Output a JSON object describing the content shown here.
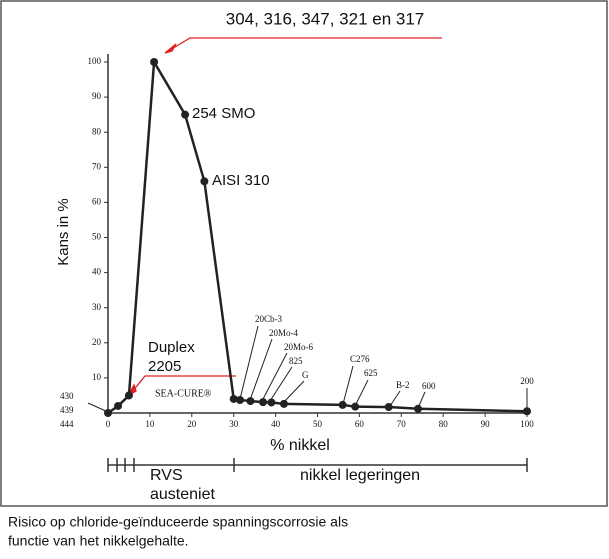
{
  "chart_data": {
    "type": "line",
    "x_label": "% nikkel",
    "y_label": "Kans in %",
    "xlim": [
      0,
      100
    ],
    "xticks": [
      0,
      10,
      20,
      30,
      40,
      50,
      60,
      70,
      80,
      90,
      100
    ],
    "ylim": [
      0,
      100
    ],
    "yticks": [
      10,
      20,
      30,
      40,
      50,
      60,
      70,
      80,
      90,
      100
    ],
    "x": [
      0,
      2.4,
      5,
      11,
      18.4,
      23,
      30,
      31.5,
      34,
      37,
      39,
      42,
      56,
      59,
      67,
      74,
      100
    ],
    "series": [
      {
        "color": "#222222",
        "values": [
          0,
          2,
          5,
          100,
          85,
          66,
          4,
          3.7,
          3.4,
          3.1,
          3,
          2.6,
          2.3,
          1.8,
          1.7,
          1.2,
          0.5
        ]
      }
    ],
    "annotations": [
      "304, 316, 347, 321 en 317",
      "254 SMO",
      "AISI 310",
      "Duplex",
      "2205",
      "SEA-CURE®",
      "20Cb-3",
      "20Mo-4",
      "20Mo-6",
      "825",
      "G",
      "C276",
      "625",
      "B-2",
      "600",
      "200",
      "430",
      "439",
      "444"
    ],
    "scale_labels": [
      "RVS",
      "austeniet",
      "nikkel legeringen"
    ],
    "caption": [
      "Risico op chloride-geïnduceerde spanningscorrosie als",
      "functie van het nikkelgehalte."
    ]
  }
}
